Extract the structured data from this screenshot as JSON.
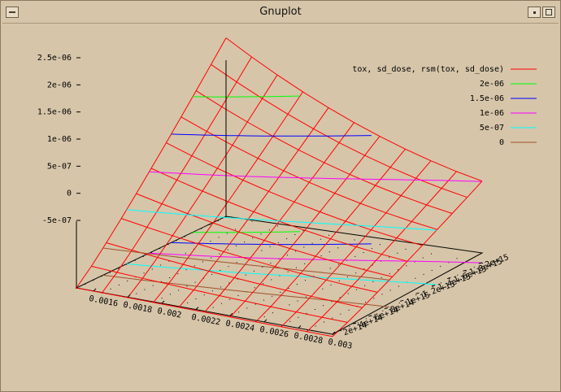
{
  "window": {
    "title": "Gnuplot"
  },
  "colors": {
    "surface": "#ff0000",
    "c2e6": "#00ff00",
    "c15e6": "#0000ff",
    "c1e6": "#ff00ff",
    "c5e7": "#00ffff",
    "c0": "#a0522d",
    "background": "#d6c5a9"
  },
  "chart_data": {
    "type": "surface3d",
    "title": "",
    "x": {
      "min": 0.0015,
      "max": 0.003,
      "ticks": [
        "0.0016",
        "0.0018",
        "0.002",
        "0.0022",
        "0.0024",
        "0.0026",
        "0.0028",
        "0.003"
      ]
    },
    "y": {
      "min": 100000000000000.0,
      "max": 2000000000000000.0,
      "ticks": [
        "2e+14",
        "4e+14",
        "6e+14",
        "8e+14",
        "1e+15",
        "1.2e+15",
        "1.4e+15",
        "1.6e+15",
        "1.8e+15",
        "2e+15"
      ]
    },
    "z": {
      "min": -5e-07,
      "max": 2.5e-06,
      "ticks": [
        "-5e-07",
        "0",
        "5e-07",
        "1e-06",
        "1.5e-06",
        "2e-06",
        "2.5e-06"
      ]
    },
    "surface_label": "tox, sd_dose, rsm(tox, sd_dose)",
    "contour_levels": [
      {
        "label": "2e-06",
        "value": 2e-06
      },
      {
        "label": "1.5e-06",
        "value": 1.5e-06
      },
      {
        "label": "1e-06",
        "value": 1e-06
      },
      {
        "label": "5e-07",
        "value": 5e-07
      },
      {
        "label": "0",
        "value": 0
      }
    ],
    "grid_isolines": [
      10,
      10
    ],
    "base_contours": true,
    "legend_placement": "top-right"
  }
}
